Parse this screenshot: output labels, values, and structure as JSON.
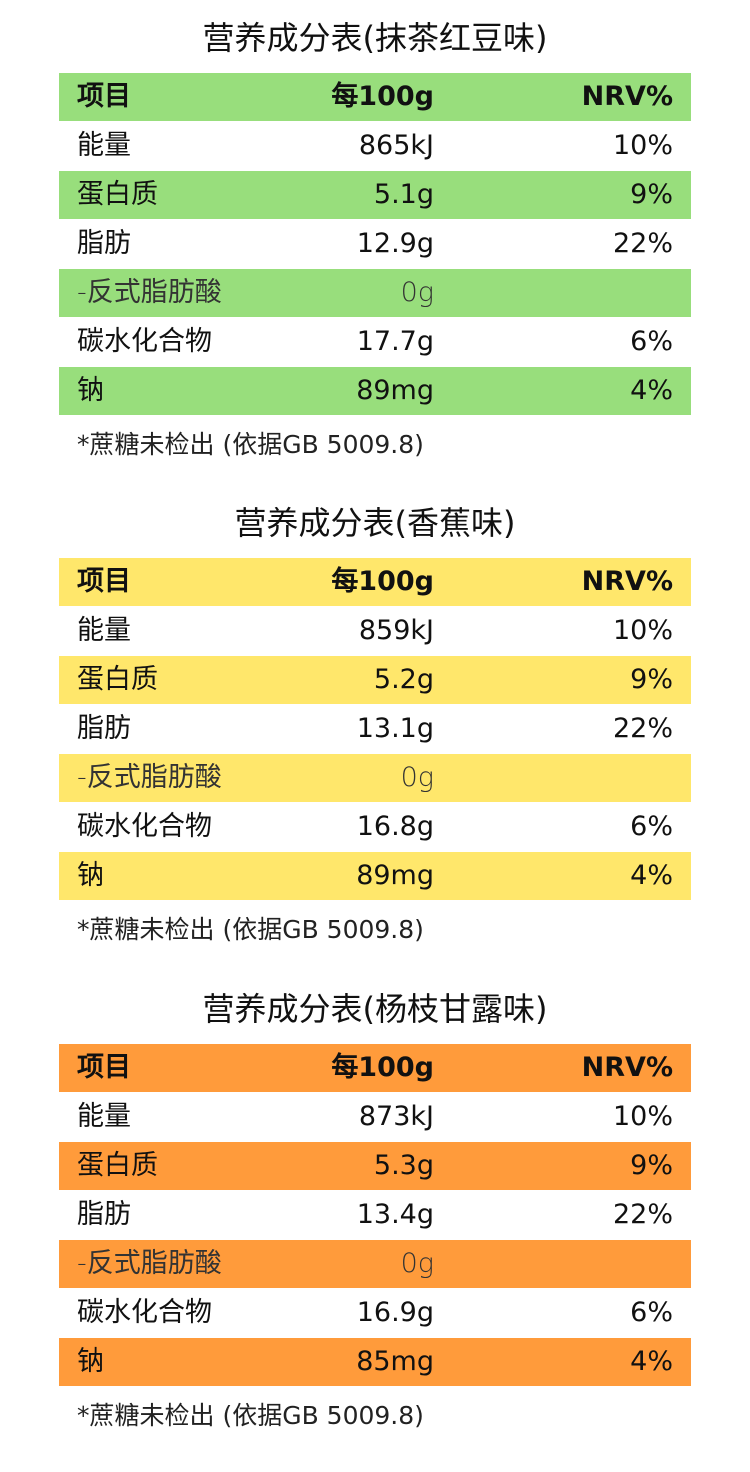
{
  "sections": [
    {
      "title": "营养成分表(抹茶红豆味)",
      "color": "#98DE7C",
      "header": [
        "项目",
        "每100g",
        "NRV%"
      ],
      "rows": [
        [
          "能量",
          "865kJ",
          "10%"
        ],
        [
          "蛋白质",
          "5.1g",
          "9%"
        ],
        [
          "脂肪",
          "12.9g",
          "22%"
        ],
        [
          "-反式脂肪酸",
          "0g",
          ""
        ],
        [
          "碳水化合物",
          "17.7g",
          "6%"
        ],
        [
          "钠",
          "89mg",
          "4%"
        ]
      ],
      "footnote": "*蔗糖未检出 (依据GB 5009.8)"
    },
    {
      "title": "营养成分表(香蕉味)",
      "color": "#FFE76B",
      "header": [
        "项目",
        "每100g",
        "NRV%"
      ],
      "rows": [
        [
          "能量",
          "859kJ",
          "10%"
        ],
        [
          "蛋白质",
          "5.2g",
          "9%"
        ],
        [
          "脂肪",
          "13.1g",
          "22%"
        ],
        [
          "-反式脂肪酸",
          "0g",
          ""
        ],
        [
          "碳水化合物",
          "16.8g",
          "6%"
        ],
        [
          "钠",
          "89mg",
          "4%"
        ]
      ],
      "footnote": "*蔗糖未检出 (依据GB 5009.8)"
    },
    {
      "title": "营养成分表(杨枝甘露味)",
      "color": "#FF9B3B",
      "header": [
        "项目",
        "每100g",
        "NRV%"
      ],
      "rows": [
        [
          "能量",
          "873kJ",
          "10%"
        ],
        [
          "蛋白质",
          "5.3g",
          "9%"
        ],
        [
          "脂肪",
          "13.4g",
          "22%"
        ],
        [
          "-反式脂肪酸",
          "0g",
          ""
        ],
        [
          "碳水化合物",
          "16.9g",
          "6%"
        ],
        [
          "钠",
          "85mg",
          "4%"
        ]
      ],
      "footnote": "*蔗糖未检出 (依据GB 5009.8)"
    }
  ]
}
